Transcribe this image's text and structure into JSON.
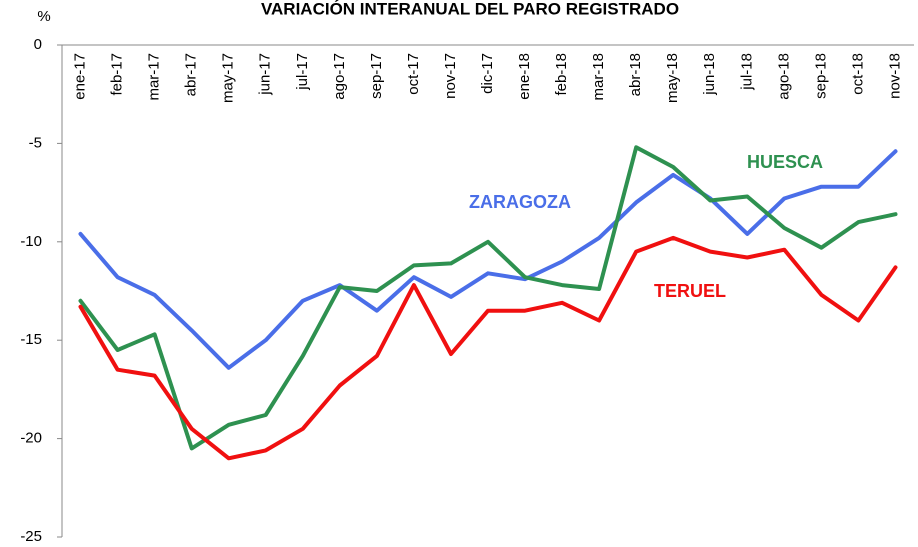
{
  "chart_data": {
    "type": "line",
    "title": "VARIACIÓN INTERANUAL DEL PARO REGISTRADO",
    "y_label": "%",
    "categories": [
      "ene-17",
      "feb-17",
      "mar-17",
      "abr-17",
      "may-17",
      "jun-17",
      "jul-17",
      "ago-17",
      "sep-17",
      "oct-17",
      "nov-17",
      "dic-17",
      "ene-18",
      "feb-18",
      "mar-18",
      "abr-18",
      "may-18",
      "jun-18",
      "jul-18",
      "ago-18",
      "sep-18",
      "oct-18",
      "nov-18"
    ],
    "series": [
      {
        "name": "ZARAGOZA",
        "color": "#4a6ee8",
        "values": [
          -9.6,
          -11.8,
          -12.7,
          -14.5,
          -16.4,
          -15,
          -13,
          -12.2,
          -13.5,
          -11.8,
          -12.8,
          -11.6,
          -11.9,
          -11,
          -9.8,
          -8,
          -6.6,
          -7.8,
          -9.6,
          -7.8,
          -7.2,
          -7.2,
          -5.4
        ]
      },
      {
        "name": "HUESCA",
        "color": "#2e9150",
        "values": [
          -13,
          -15.5,
          -14.7,
          -20.5,
          -19.3,
          -18.8,
          -15.8,
          -12.3,
          -12.5,
          -11.2,
          -11.1,
          -10,
          -11.8,
          -12.2,
          -12.4,
          -5.2,
          -6.2,
          -7.9,
          -7.7,
          -9.3,
          -10.3,
          -9,
          -8.6
        ]
      },
      {
        "name": "TERUEL",
        "color": "#f01010",
        "values": [
          -13.3,
          -16.5,
          -16.8,
          -19.5,
          -21,
          -20.6,
          -19.5,
          -17.3,
          -15.8,
          -12.2,
          -15.7,
          -13.5,
          -13.5,
          -13.1,
          -14,
          -10.5,
          -9.8,
          -10.5,
          -10.8,
          -10.4,
          -12.7,
          -14,
          -11.3
        ]
      }
    ],
    "ylim": [
      -25,
      0
    ],
    "yticks": [
      0,
      -5,
      -10,
      -15,
      -20,
      -25
    ],
    "grid": false,
    "legend": "inline"
  }
}
